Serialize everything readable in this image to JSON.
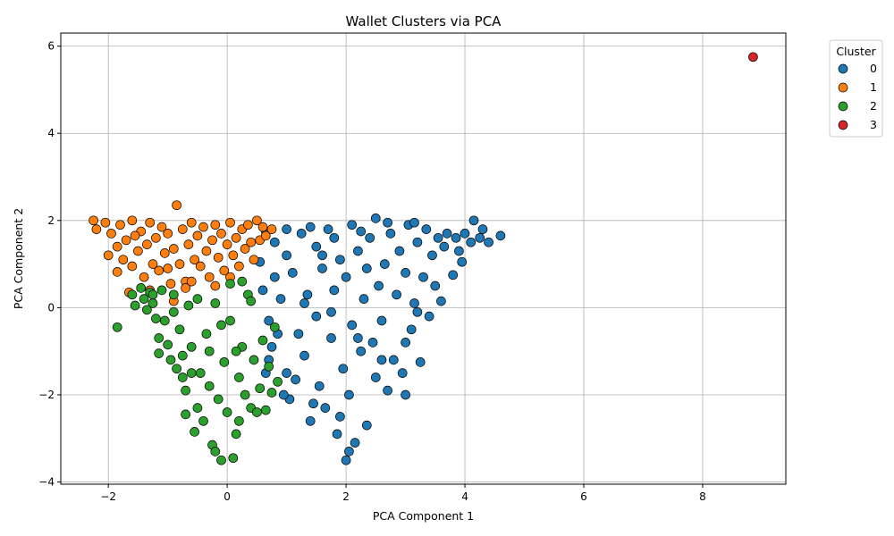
{
  "chart_data": {
    "type": "scatter",
    "title": "Wallet Clusters via PCA",
    "xlabel": "PCA Component 1",
    "ylabel": "PCA Component 2",
    "xlim": [
      -2.8,
      9.4
    ],
    "ylim": [
      -4.05,
      6.3
    ],
    "x_ticks": [
      -2,
      0,
      2,
      4,
      6,
      8
    ],
    "y_ticks": [
      -4,
      -2,
      0,
      2,
      4,
      6
    ],
    "grid": true,
    "legend": {
      "title": "Cluster",
      "placement": "outside-top-right"
    },
    "series": [
      {
        "name": "0",
        "color": "#1f77b4",
        "points": [
          [
            0.55,
            1.05
          ],
          [
            0.6,
            0.4
          ],
          [
            0.7,
            -0.3
          ],
          [
            0.75,
            -0.9
          ],
          [
            0.8,
            1.5
          ],
          [
            0.9,
            0.2
          ],
          [
            1.0,
            -1.5
          ],
          [
            1.0,
            1.2
          ],
          [
            1.05,
            -2.1
          ],
          [
            1.1,
            0.8
          ],
          [
            1.2,
            -0.6
          ],
          [
            1.25,
            1.7
          ],
          [
            1.3,
            -1.1
          ],
          [
            1.35,
            0.3
          ],
          [
            1.4,
            -2.6
          ],
          [
            1.5,
            1.4
          ],
          [
            1.5,
            -0.2
          ],
          [
            1.55,
            -1.8
          ],
          [
            1.6,
            0.9
          ],
          [
            1.65,
            -2.3
          ],
          [
            1.7,
            1.8
          ],
          [
            1.75,
            -0.7
          ],
          [
            1.8,
            0.4
          ],
          [
            1.85,
            -2.9
          ],
          [
            1.9,
            1.1
          ],
          [
            1.95,
            -1.4
          ],
          [
            2.0,
            -3.5
          ],
          [
            2.0,
            0.7
          ],
          [
            2.05,
            -2.0
          ],
          [
            2.1,
            1.9
          ],
          [
            2.1,
            -0.4
          ],
          [
            2.15,
            -3.1
          ],
          [
            2.2,
            1.3
          ],
          [
            2.25,
            -1.0
          ],
          [
            2.3,
            0.2
          ],
          [
            2.35,
            -2.7
          ],
          [
            2.4,
            1.6
          ],
          [
            2.45,
            -0.8
          ],
          [
            2.5,
            2.05
          ],
          [
            2.5,
            -1.6
          ],
          [
            2.55,
            0.5
          ],
          [
            2.6,
            -0.3
          ],
          [
            2.65,
            1.0
          ],
          [
            2.7,
            -1.9
          ],
          [
            2.75,
            1.7
          ],
          [
            2.8,
            -1.2
          ],
          [
            2.85,
            0.3
          ],
          [
            2.9,
            1.3
          ],
          [
            2.95,
            -1.5
          ],
          [
            3.0,
            -2.0
          ],
          [
            3.0,
            0.8
          ],
          [
            3.05,
            1.9
          ],
          [
            3.1,
            -0.5
          ],
          [
            3.15,
            0.1
          ],
          [
            3.2,
            1.5
          ],
          [
            3.25,
            -1.25
          ],
          [
            3.3,
            0.7
          ],
          [
            3.35,
            1.8
          ],
          [
            3.4,
            -0.2
          ],
          [
            3.45,
            1.2
          ],
          [
            3.5,
            0.5
          ],
          [
            3.55,
            1.6
          ],
          [
            3.6,
            0.15
          ],
          [
            3.65,
            1.4
          ],
          [
            3.7,
            1.7
          ],
          [
            3.8,
            0.75
          ],
          [
            3.85,
            1.6
          ],
          [
            3.9,
            1.3
          ],
          [
            3.95,
            1.05
          ],
          [
            4.0,
            1.7
          ],
          [
            4.1,
            1.5
          ],
          [
            4.15,
            2.0
          ],
          [
            4.25,
            1.6
          ],
          [
            4.3,
            1.8
          ],
          [
            4.4,
            1.5
          ],
          [
            4.6,
            1.65
          ],
          [
            1.0,
            1.8
          ],
          [
            1.4,
            1.85
          ],
          [
            1.8,
            1.6
          ],
          [
            2.25,
            1.75
          ],
          [
            2.7,
            1.95
          ],
          [
            3.15,
            1.95
          ],
          [
            0.65,
            1.75
          ],
          [
            1.15,
            -1.65
          ],
          [
            0.95,
            -2.0
          ],
          [
            1.45,
            -2.2
          ],
          [
            1.9,
            -2.5
          ],
          [
            2.05,
            -3.3
          ],
          [
            0.7,
            -1.2
          ],
          [
            0.85,
            -0.6
          ],
          [
            1.3,
            0.1
          ],
          [
            1.75,
            -0.1
          ],
          [
            2.2,
            -0.7
          ],
          [
            2.6,
            -1.2
          ],
          [
            3.0,
            -0.8
          ],
          [
            3.2,
            -0.1
          ],
          [
            2.35,
            0.9
          ],
          [
            1.6,
            1.2
          ],
          [
            0.8,
            0.7
          ],
          [
            0.65,
            -1.5
          ]
        ]
      },
      {
        "name": "1",
        "color": "#ff7f0e",
        "points": [
          [
            -2.25,
            2.0
          ],
          [
            -2.2,
            1.8
          ],
          [
            -2.05,
            1.95
          ],
          [
            -2.0,
            1.2
          ],
          [
            -1.95,
            1.7
          ],
          [
            -1.85,
            1.4
          ],
          [
            -1.85,
            0.82
          ],
          [
            -1.8,
            1.9
          ],
          [
            -1.75,
            1.1
          ],
          [
            -1.7,
            1.55
          ],
          [
            -1.65,
            0.35
          ],
          [
            -1.6,
            2.0
          ],
          [
            -1.6,
            0.95
          ],
          [
            -1.5,
            1.3
          ],
          [
            -1.45,
            1.75
          ],
          [
            -1.4,
            0.7
          ],
          [
            -1.35,
            1.45
          ],
          [
            -1.3,
            1.95
          ],
          [
            -1.25,
            1.0
          ],
          [
            -1.2,
            1.6
          ],
          [
            -1.15,
            0.85
          ],
          [
            -1.1,
            1.85
          ],
          [
            -1.05,
            1.25
          ],
          [
            -1.0,
            1.7
          ],
          [
            -0.95,
            0.55
          ],
          [
            -0.9,
            1.35
          ],
          [
            -0.85,
            2.35
          ],
          [
            -0.8,
            1.0
          ],
          [
            -0.75,
            1.8
          ],
          [
            -0.7,
            0.6
          ],
          [
            -0.65,
            1.45
          ],
          [
            -0.6,
            1.95
          ],
          [
            -0.55,
            1.1
          ],
          [
            -0.5,
            1.65
          ],
          [
            -0.45,
            0.95
          ],
          [
            -0.4,
            1.85
          ],
          [
            -0.35,
            1.3
          ],
          [
            -0.3,
            0.7
          ],
          [
            -0.25,
            1.55
          ],
          [
            -0.2,
            1.9
          ],
          [
            -0.15,
            1.15
          ],
          [
            -0.1,
            1.7
          ],
          [
            -0.05,
            0.85
          ],
          [
            0.0,
            1.45
          ],
          [
            0.05,
            1.95
          ],
          [
            0.1,
            1.2
          ],
          [
            0.15,
            1.6
          ],
          [
            0.2,
            0.95
          ],
          [
            0.25,
            1.8
          ],
          [
            0.3,
            1.35
          ],
          [
            0.35,
            1.9
          ],
          [
            0.4,
            1.5
          ],
          [
            0.45,
            1.1
          ],
          [
            0.5,
            2.0
          ],
          [
            0.55,
            1.55
          ],
          [
            0.6,
            1.85
          ],
          [
            0.65,
            1.65
          ],
          [
            0.75,
            1.8
          ],
          [
            -0.9,
            0.15
          ],
          [
            -0.7,
            0.45
          ],
          [
            -1.3,
            0.4
          ],
          [
            -1.55,
            1.65
          ],
          [
            -0.2,
            0.5
          ],
          [
            0.05,
            0.7
          ],
          [
            -0.6,
            0.6
          ],
          [
            -1.0,
            0.9
          ]
        ]
      },
      {
        "name": "2",
        "color": "#2ca02c",
        "points": [
          [
            -1.85,
            -0.45
          ],
          [
            -1.6,
            0.3
          ],
          [
            -1.55,
            0.05
          ],
          [
            -1.45,
            0.45
          ],
          [
            -1.4,
            0.2
          ],
          [
            -1.35,
            -0.05
          ],
          [
            -1.3,
            0.35
          ],
          [
            -1.25,
            0.1
          ],
          [
            -1.2,
            -0.25
          ],
          [
            -1.15,
            -0.7
          ],
          [
            -1.15,
            -1.05
          ],
          [
            -1.1,
            0.4
          ],
          [
            -1.05,
            -0.3
          ],
          [
            -1.0,
            -0.85
          ],
          [
            -0.95,
            -1.2
          ],
          [
            -0.9,
            0.3
          ],
          [
            -0.85,
            -1.4
          ],
          [
            -0.8,
            -0.5
          ],
          [
            -0.75,
            -1.1
          ],
          [
            -0.7,
            -2.45
          ],
          [
            -0.7,
            -1.9
          ],
          [
            -0.65,
            0.05
          ],
          [
            -0.6,
            -0.9
          ],
          [
            -0.55,
            -2.85
          ],
          [
            -0.5,
            -2.3
          ],
          [
            -0.45,
            -1.5
          ],
          [
            -0.4,
            -2.6
          ],
          [
            -0.35,
            -0.6
          ],
          [
            -0.3,
            -1.8
          ],
          [
            -0.25,
            -3.15
          ],
          [
            -0.2,
            -3.3
          ],
          [
            -0.15,
            -2.1
          ],
          [
            -0.1,
            -3.5
          ],
          [
            -0.05,
            -1.25
          ],
          [
            0.0,
            -2.4
          ],
          [
            0.05,
            -0.3
          ],
          [
            0.1,
            -3.45
          ],
          [
            0.15,
            -2.9
          ],
          [
            0.2,
            -1.6
          ],
          [
            0.25,
            -0.9
          ],
          [
            0.3,
            -2.0
          ],
          [
            0.35,
            0.3
          ],
          [
            0.4,
            -2.3
          ],
          [
            0.45,
            -1.2
          ],
          [
            0.5,
            -2.4
          ],
          [
            0.55,
            -1.85
          ],
          [
            0.6,
            -0.75
          ],
          [
            0.65,
            -2.35
          ],
          [
            0.7,
            -1.35
          ],
          [
            0.75,
            -1.95
          ],
          [
            0.8,
            -0.45
          ],
          [
            0.85,
            -1.7
          ],
          [
            0.05,
            0.55
          ],
          [
            -0.2,
            0.1
          ],
          [
            0.25,
            0.6
          ],
          [
            -0.5,
            0.2
          ],
          [
            -0.9,
            -0.1
          ],
          [
            -0.3,
            -1.0
          ],
          [
            0.15,
            -1.0
          ],
          [
            -0.75,
            -1.6
          ],
          [
            -1.25,
            0.3
          ],
          [
            -0.6,
            -1.5
          ],
          [
            0.2,
            -2.6
          ],
          [
            0.4,
            0.15
          ],
          [
            -0.1,
            -0.4
          ]
        ]
      },
      {
        "name": "3",
        "color": "#d62728",
        "points": [
          [
            8.85,
            5.75
          ]
        ]
      }
    ]
  }
}
